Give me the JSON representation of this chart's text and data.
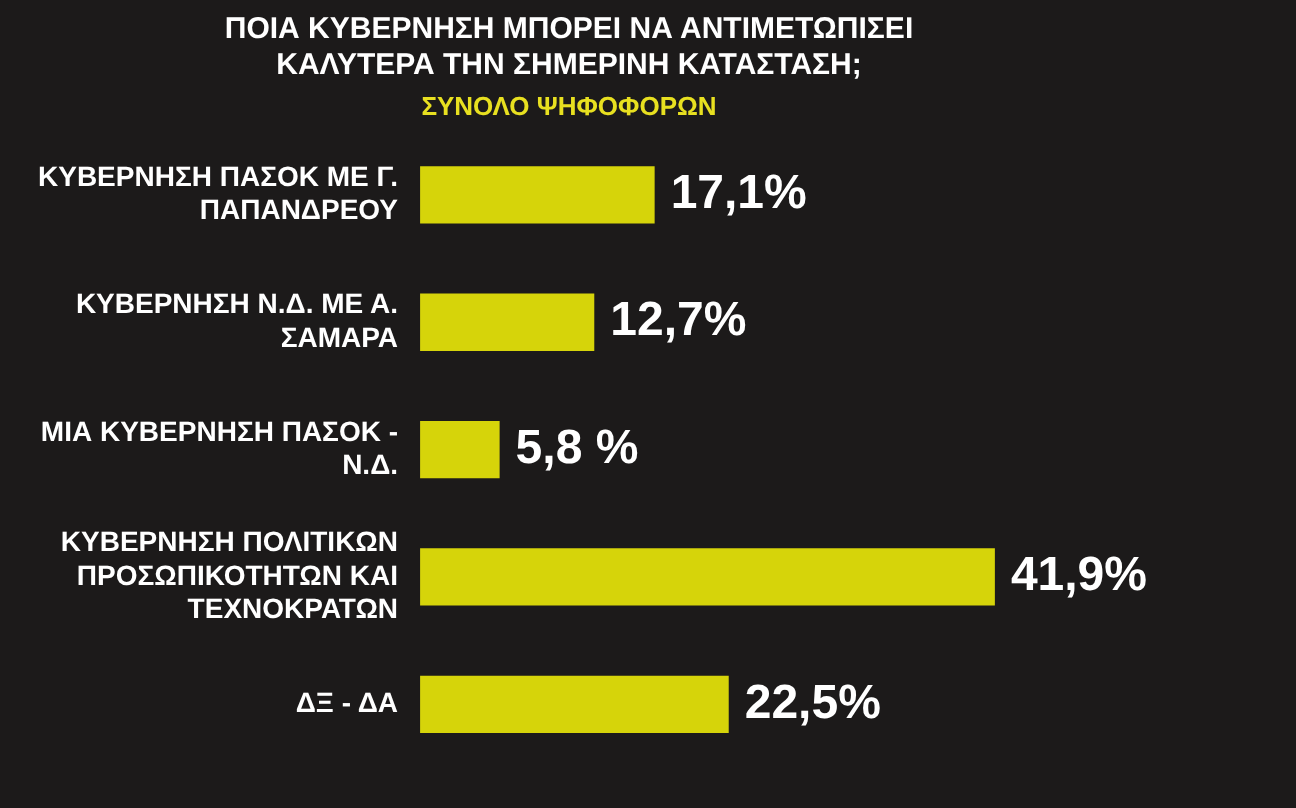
{
  "chart_data": {
    "type": "bar",
    "orientation": "horizontal",
    "title": "ΠΟΙΑ ΚΥΒΕΡΝΗΣΗ ΜΠΟΡΕΙ ΝΑ ΑΝΤΙΜΕΤΩΠΙΣΕΙ ΚΑΛΥΤΕΡΑ ΤΗΝ ΣΗΜΕΡΙΝΗ ΚΑΤΑΣΤΑΣΗ;",
    "subtitle": "ΣΥΝΟΛΟ ΨΗΦΟΦΟΡΩΝ",
    "categories": [
      "ΚΥΒΕΡΝΗΣΗ ΠΑΣΟΚ ΜΕ Γ. ΠΑΠΑΝΔΡΕΟΥ",
      "ΚΥΒΕΡΝΗΣΗ Ν.Δ. ΜΕ Α. ΣΑΜΑΡΑ",
      "ΜΙΑ ΚΥΒΕΡΝΗΣΗ ΠΑΣΟΚ - Ν.Δ.",
      "ΚΥΒΕΡΝΗΣΗ ΠΟΛΙΤΙΚΩΝ ΠΡΟΣΩΠΙΚΟΤΗΤΩΝ ΚΑΙ ΤΕΧΝΟΚΡΑΤΩΝ",
      "ΔΞ - ΔΑ"
    ],
    "values": [
      17.1,
      12.7,
      5.8,
      41.9,
      22.5
    ],
    "value_labels": [
      "17,1%",
      "12,7%",
      "5,8 %",
      "41,9%",
      "22,5%"
    ],
    "color": "#d6d40a",
    "tick_labels": "y"
  }
}
